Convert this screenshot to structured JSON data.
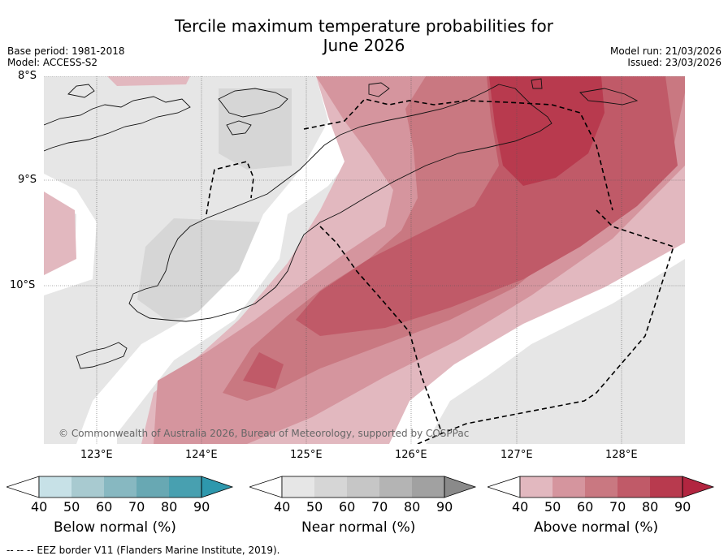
{
  "header": {
    "title_line1": "Tercile maximum temperature probabilities for",
    "title_line2": "June 2026",
    "base_period": "Base period: 1981-2018",
    "model": "Model: ACCESS-S2",
    "model_run": "Model run: 21/03/2026",
    "issued": "Issued: 23/03/2026"
  },
  "map": {
    "lat_labels": [
      "8°S",
      "9°S",
      "10°S"
    ],
    "lon_labels": [
      "123°E",
      "124°E",
      "125°E",
      "126°E",
      "127°E",
      "128°E"
    ],
    "copyright": "© Commonwealth of Australia 2026, Bureau of Meteorology, supported by COSPPac"
  },
  "colorbars": [
    {
      "label": "Below normal (%)",
      "ticks": [
        "40",
        "50",
        "60",
        "70",
        "80",
        "90"
      ],
      "colors": [
        "#c7e1e7",
        "#a8cad0",
        "#87b8c1",
        "#68a8b3",
        "#48a0b0",
        "#2e98ad"
      ]
    },
    {
      "label": "Near normal (%)",
      "ticks": [
        "40",
        "50",
        "60",
        "70",
        "80",
        "90"
      ],
      "colors": [
        "#e6e6e6",
        "#d6d6d6",
        "#c6c6c6",
        "#b4b4b4",
        "#a1a1a1",
        "#8a8a8a"
      ]
    },
    {
      "label": "Above normal (%)",
      "ticks": [
        "40",
        "50",
        "60",
        "70",
        "80",
        "90"
      ],
      "colors": [
        "#e2b8bf",
        "#d5959e",
        "#c97881",
        "#c05a68",
        "#b83a4e",
        "#b22540"
      ]
    }
  ],
  "footer": "--  --  -- EEZ border V11 (Flanders Marine Institute, 2019)."
}
